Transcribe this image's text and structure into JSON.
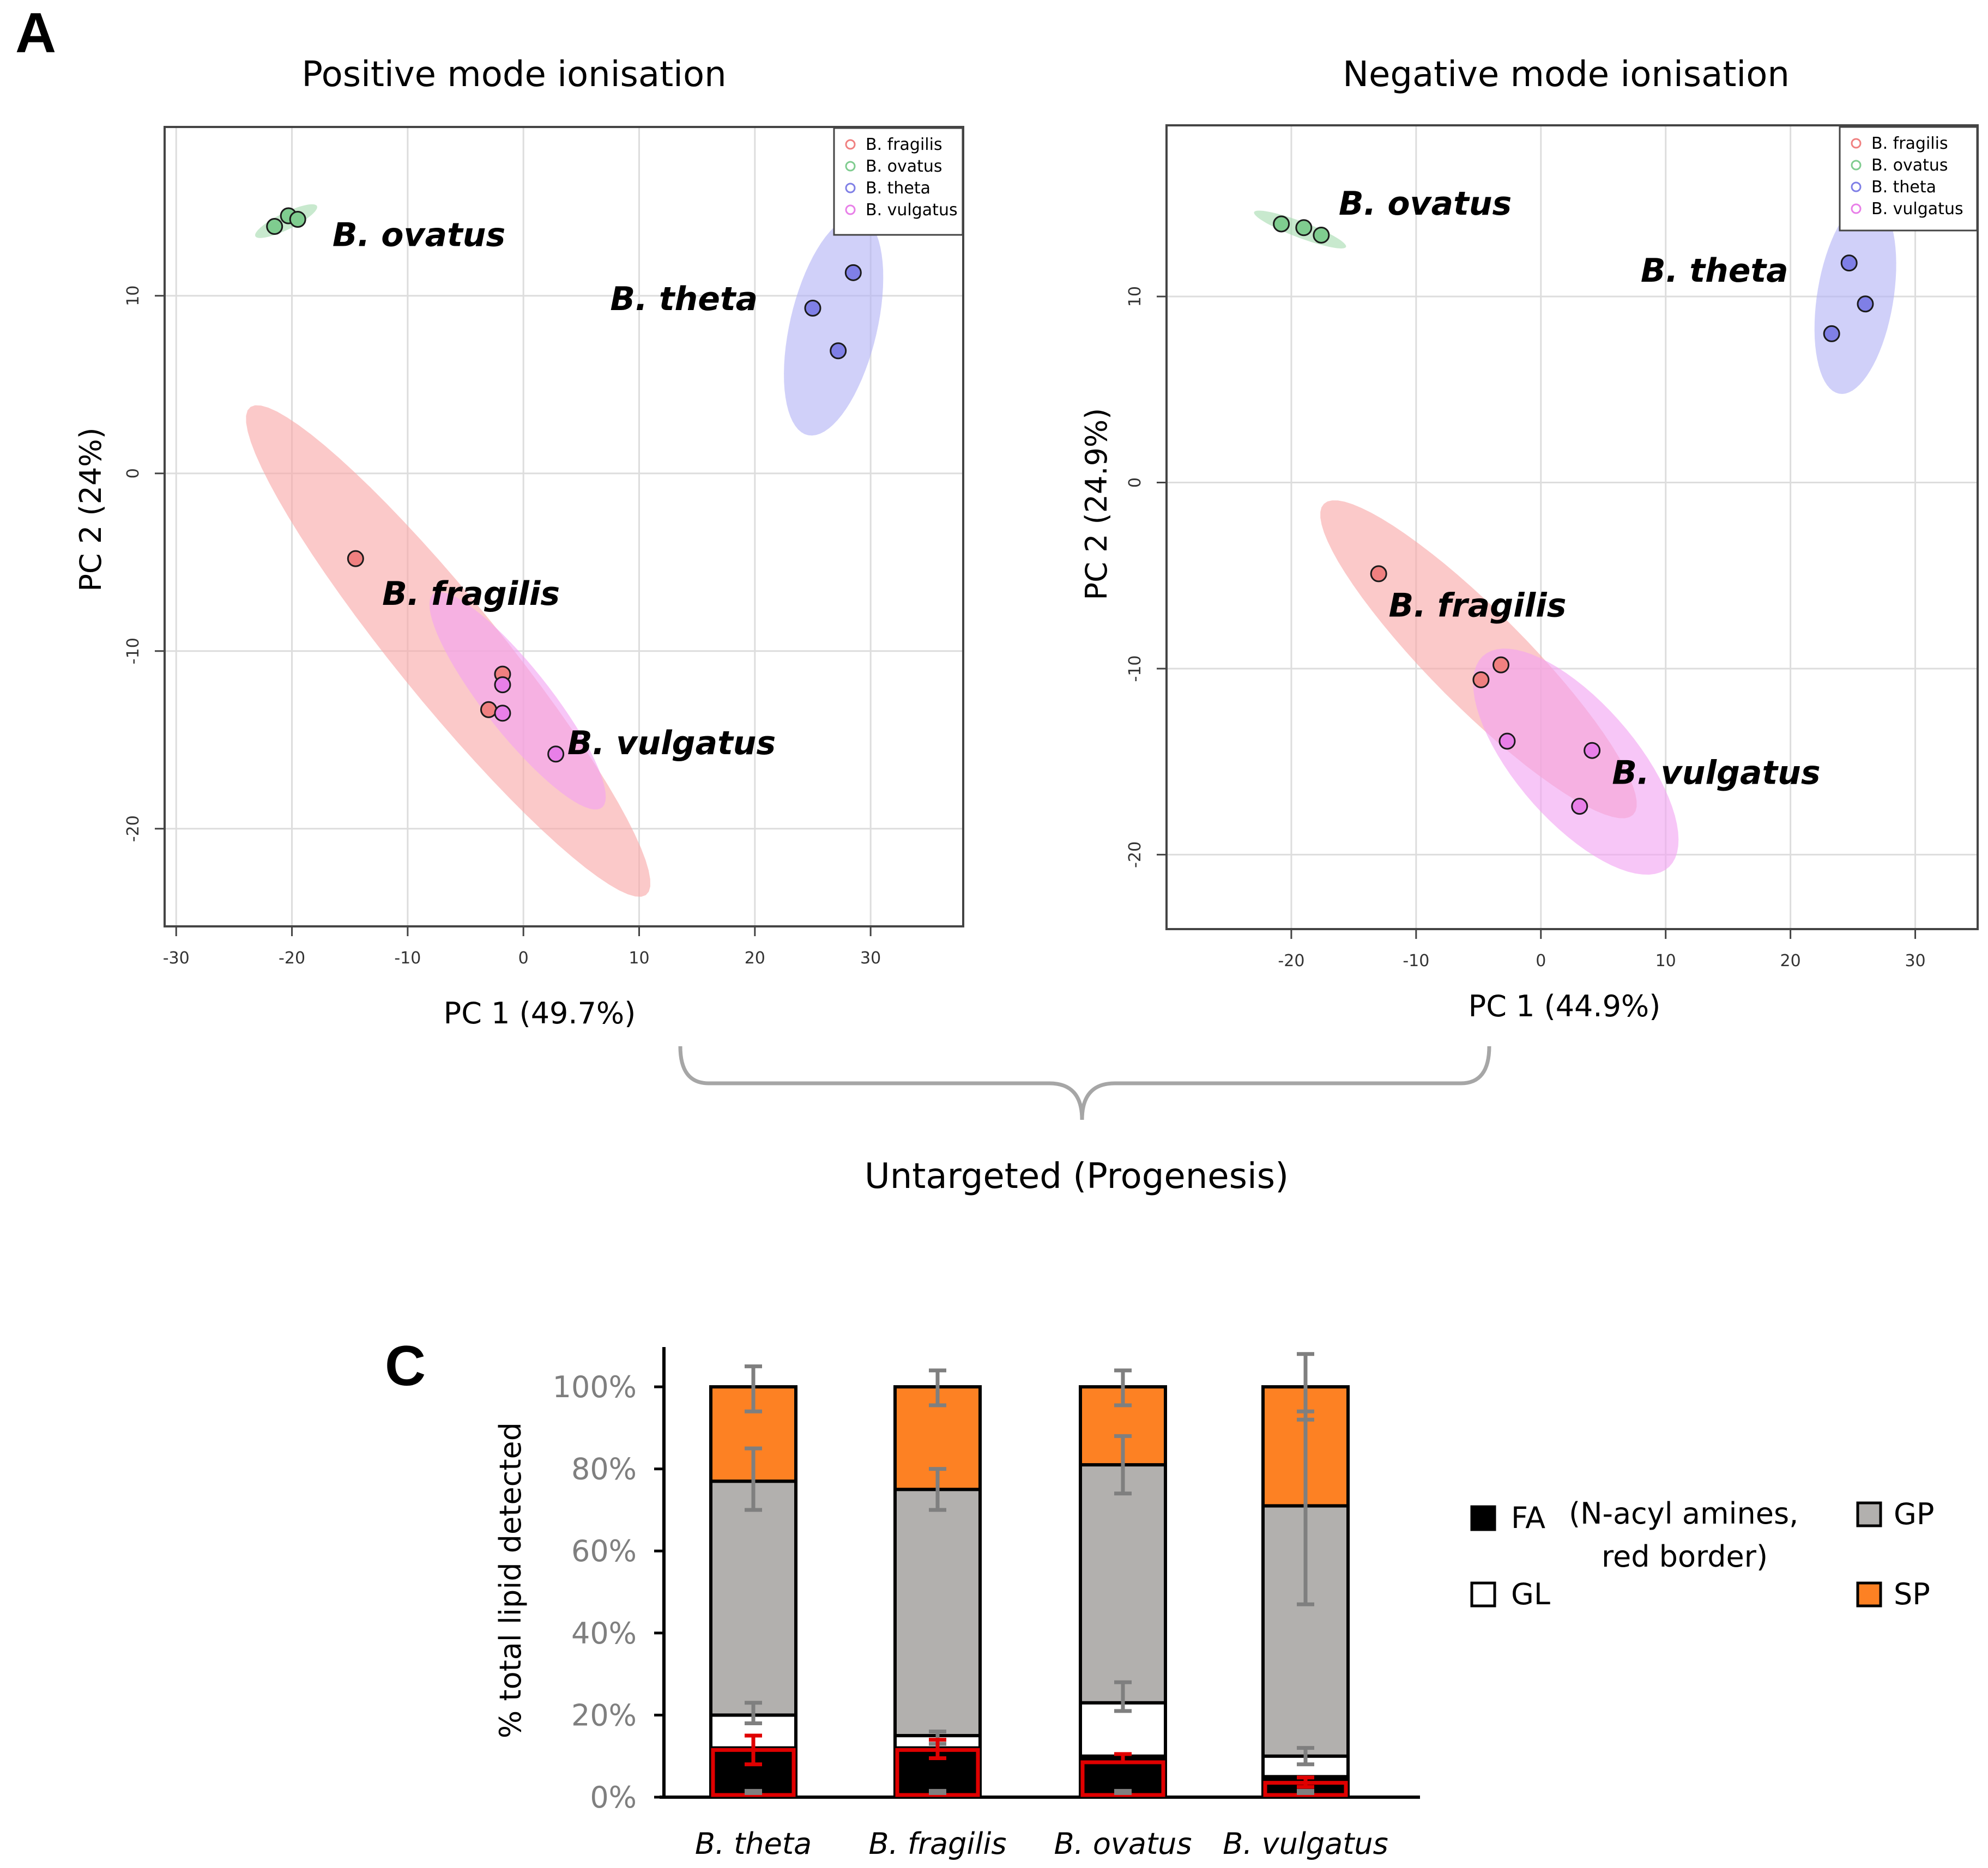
{
  "panels": {
    "a_letter": "A",
    "c_letter": "C"
  },
  "colors": {
    "fragilis": "#f08080",
    "ovatus": "#7fcc8f",
    "theta": "#7f7fe6",
    "vulgatus": "#e87fe8",
    "fragilis_ellipse": "#f9a8a8",
    "ovatus_ellipse": "#a7dcb0",
    "theta_ellipse": "#b3b3f5",
    "vulgatus_ellipse": "#f2a3f2",
    "SP": "#fd8123",
    "GP": "#b2b0ae",
    "GL": "#ffffff",
    "FA": "#000000",
    "error_grey": "#7f7f7f",
    "error_red": "#e00000"
  },
  "bracket": {
    "label": "Untargeted (Progenesis)"
  },
  "chart_data": [
    {
      "id": "positive",
      "type": "scatter",
      "title": "Positive mode ionisation",
      "xlabel": "PC 1 (49.7%)",
      "ylabel": "PC 2 (24%)",
      "xlim": [
        -31,
        38
      ],
      "ylim": [
        -25.5,
        19.5
      ],
      "xticks": [
        -30,
        -20,
        -10,
        0,
        10,
        20,
        30
      ],
      "yticks": [
        -20,
        -10,
        0,
        10
      ],
      "legend": [
        "B. fragilis",
        "B. ovatus",
        "B. theta",
        "B. vulgatus"
      ],
      "series": [
        {
          "name": "B. fragilis",
          "key": "fragilis",
          "points": [
            [
              -14.5,
              -4.8
            ],
            [
              -1.8,
              -11.3
            ],
            [
              -3.0,
              -13.3
            ]
          ],
          "ellipse": {
            "cx": -6.5,
            "cy": -10,
            "rx": 22,
            "ry": 3.6,
            "angle_deg": -38
          }
        },
        {
          "name": "B. ovatus",
          "key": "ovatus",
          "points": [
            [
              -20.3,
              14.5
            ],
            [
              -19.5,
              14.3
            ],
            [
              -21.5,
              13.9
            ]
          ],
          "ellipse": {
            "cx": -20.5,
            "cy": 14.2,
            "rx": 2.8,
            "ry": 0.5,
            "angle_deg": 17
          }
        },
        {
          "name": "B. theta",
          "key": "theta",
          "points": [
            [
              28.5,
              11.3
            ],
            [
              25.0,
              9.3
            ],
            [
              27.2,
              6.9
            ]
          ],
          "ellipse": {
            "cx": 26.8,
            "cy": 8.3,
            "rx": 6.6,
            "ry": 3.6,
            "angle_deg": 65
          }
        },
        {
          "name": "B. vulgatus",
          "key": "vulgatus",
          "points": [
            [
              -1.8,
              -11.9
            ],
            [
              -1.8,
              -13.5
            ],
            [
              2.8,
              -15.8
            ]
          ],
          "ellipse": {
            "cx": -0.5,
            "cy": -12.8,
            "rx": 9.5,
            "ry": 2.3,
            "angle_deg": -38
          }
        }
      ],
      "labels": [
        {
          "text": "B. ovatus",
          "x": -16.5,
          "y": 12.8
        },
        {
          "text": "B. theta",
          "x": 7.5,
          "y": 9.2
        },
        {
          "text": "B. fragilis",
          "x": -12.2,
          "y": -7.4
        },
        {
          "text": "B. vulgatus",
          "x": 3.8,
          "y": -15.8
        }
      ]
    },
    {
      "id": "negative",
      "type": "scatter",
      "title": "Negative mode ionisation",
      "xlabel": "PC 1 (44.9%)",
      "ylabel": "PC 2 (24.9%)",
      "xlim": [
        -30,
        35
      ],
      "ylim": [
        -24,
        19.2
      ],
      "xticks": [
        -20,
        -10,
        0,
        10,
        20,
        30
      ],
      "yticks": [
        -20,
        -10,
        0,
        10
      ],
      "legend": [
        "B. fragilis",
        "B. ovatus",
        "B. theta",
        "B. vulgatus"
      ],
      "series": [
        {
          "name": "B. fragilis",
          "key": "fragilis",
          "points": [
            [
              -13.0,
              -4.9
            ],
            [
              -3.2,
              -9.8
            ],
            [
              -4.8,
              -10.6
            ]
          ],
          "ellipse": {
            "cx": -5,
            "cy": -9.5,
            "rx": 15,
            "ry": 3,
            "angle_deg": -33
          }
        },
        {
          "name": "B. ovatus",
          "key": "ovatus",
          "points": [
            [
              -20.8,
              13.9
            ],
            [
              -19.0,
              13.7
            ],
            [
              -17.6,
              13.3
            ]
          ],
          "ellipse": {
            "cx": -19.3,
            "cy": 13.6,
            "rx": 3.8,
            "ry": 0.45,
            "angle_deg": -14
          }
        },
        {
          "name": "B. theta",
          "key": "theta",
          "points": [
            [
              24.7,
              11.8
            ],
            [
              26.0,
              9.6
            ],
            [
              23.3,
              8.0
            ]
          ],
          "ellipse": {
            "cx": 25.2,
            "cy": 10,
            "rx": 5.4,
            "ry": 3.0,
            "angle_deg": 73
          }
        },
        {
          "name": "B. vulgatus",
          "key": "vulgatus",
          "points": [
            [
              -2.7,
              -13.9
            ],
            [
              4.1,
              -14.4
            ],
            [
              3.1,
              -17.4
            ]
          ],
          "ellipse": {
            "cx": 2.8,
            "cy": -15,
            "rx": 9.5,
            "ry": 3.8,
            "angle_deg": -33
          }
        }
      ],
      "labels": [
        {
          "text": "B. ovatus",
          "x": -16.2,
          "y": 14.4
        },
        {
          "text": "B. theta",
          "x": 8.0,
          "y": 10.8
        },
        {
          "text": "B. fragilis",
          "x": -12.2,
          "y": -7.2
        },
        {
          "text": "B. vulgatus",
          "x": 5.7,
          "y": -16.2
        }
      ]
    },
    {
      "id": "lipids",
      "type": "bar",
      "stacked": true,
      "ylabel": "% total lipid detected",
      "ylim": [
        0,
        100
      ],
      "yticks": [
        "0%",
        "20%",
        "40%",
        "60%",
        "80%",
        "100%"
      ],
      "categories": [
        "B. theta",
        "B. fragilis",
        "B. ovatus",
        "B. vulgatus"
      ],
      "series": [
        {
          "name": "FA",
          "key": "FA",
          "values": [
            12,
            12,
            10,
            5
          ]
        },
        {
          "name": "GL",
          "key": "GL",
          "values": [
            8,
            3,
            13,
            5
          ]
        },
        {
          "name": "GP",
          "key": "GP",
          "values": [
            57,
            60,
            58,
            61
          ]
        },
        {
          "name": "SP",
          "key": "SP",
          "values": [
            23,
            25,
            19,
            29
          ]
        }
      ],
      "n_acyl_amines": [
        11.5,
        11.5,
        8.5,
        3.5
      ],
      "error_bars": {
        "SP": [
          [
            94,
            105
          ],
          [
            95.5,
            104
          ],
          [
            95.5,
            104
          ],
          [
            92,
            108
          ]
        ],
        "GP": [
          [
            70,
            85
          ],
          [
            70,
            80
          ],
          [
            74,
            88
          ],
          [
            47,
            94
          ]
        ],
        "GL": [
          [
            18,
            23
          ],
          [
            13,
            16
          ],
          [
            21,
            28
          ],
          [
            8,
            12
          ]
        ],
        "FA_total": [
          [
            1,
            3
          ],
          [
            0.5,
            1.5
          ],
          [
            3,
            5
          ],
          [
            0.5,
            2
          ]
        ],
        "n_acyl_amines": [
          [
            8,
            15
          ],
          [
            9.5,
            14
          ],
          [
            8.5,
            10.5
          ],
          [
            2.5,
            4.8
          ]
        ]
      },
      "legend": {
        "FA": "FA",
        "FA_note_1": "(N-acyl amines,",
        "FA_note_2": "red border)",
        "GP": "GP",
        "GL": "GL",
        "SP": "SP"
      }
    }
  ]
}
